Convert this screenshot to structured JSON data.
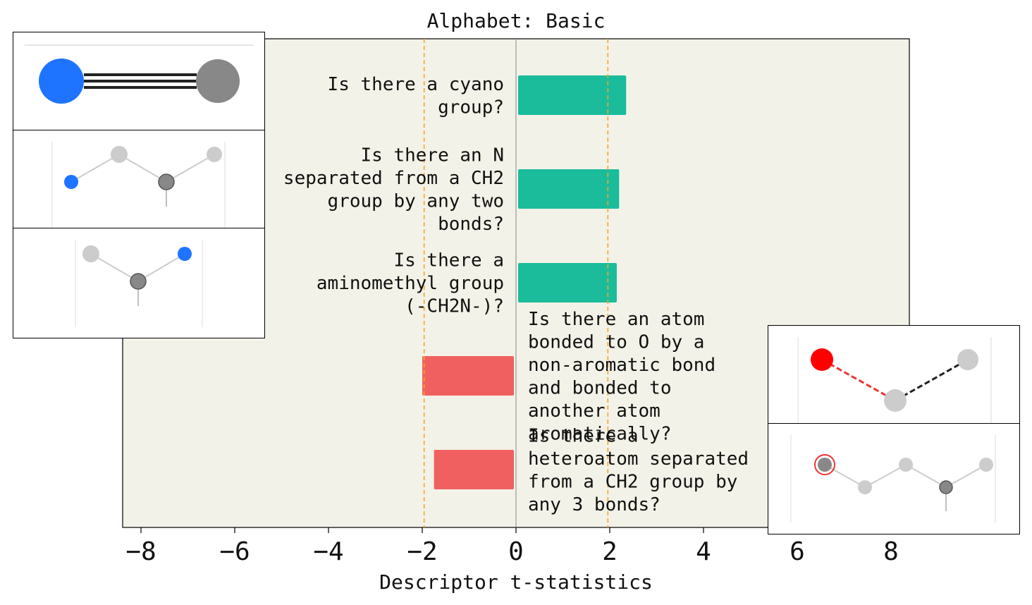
{
  "chart_data": {
    "type": "bar",
    "orientation": "horizontal",
    "title": "Alphabet: Basic",
    "xlabel": "Descriptor t-statistics",
    "ylabel": "",
    "xlim": [
      -8.4,
      8.4
    ],
    "xticks": [
      -8,
      -6,
      -4,
      -2,
      0,
      2,
      4,
      6,
      8
    ],
    "xtick_labels": [
      "−8",
      "−6",
      "−4",
      "−2",
      "0",
      "2",
      "4",
      "6",
      "8"
    ],
    "significance_lines": [
      -1.96,
      1.96
    ],
    "grid": false,
    "categories": [
      "Is there a cyano group?",
      "Is there an N separated from a CH2 group by any two bonds?",
      "Is there a aminomethyl group (-CH2N-)?",
      "Is there an atom bonded to O by a non-aromatic bond and bonded to another atom aromatically?",
      "Is there a heteroatom separated from a CH2 group by any 3 bonds?"
    ],
    "label_lines": [
      [
        "Is there a cyano",
        "group?"
      ],
      [
        "Is there an N",
        "separated from a CH2",
        "group by any two",
        "bonds?"
      ],
      [
        "Is there a",
        "aminomethyl group",
        "(-CH2N-)?"
      ],
      [
        "Is there an atom",
        "bonded to O by a",
        "non-aromatic bond",
        "and bonded to",
        "another atom",
        "aromatically?"
      ],
      [
        "Is there a",
        "heteroatom separated",
        "from a CH2 group by",
        "any 3 bonds?"
      ]
    ],
    "values": [
      2.35,
      2.2,
      2.15,
      -2.0,
      -1.75
    ],
    "colors": {
      "positive": "#1abc9c",
      "negative": "#f06060",
      "threshold": "#f5a623",
      "plot_bg": "#f3f2e8"
    }
  }
}
